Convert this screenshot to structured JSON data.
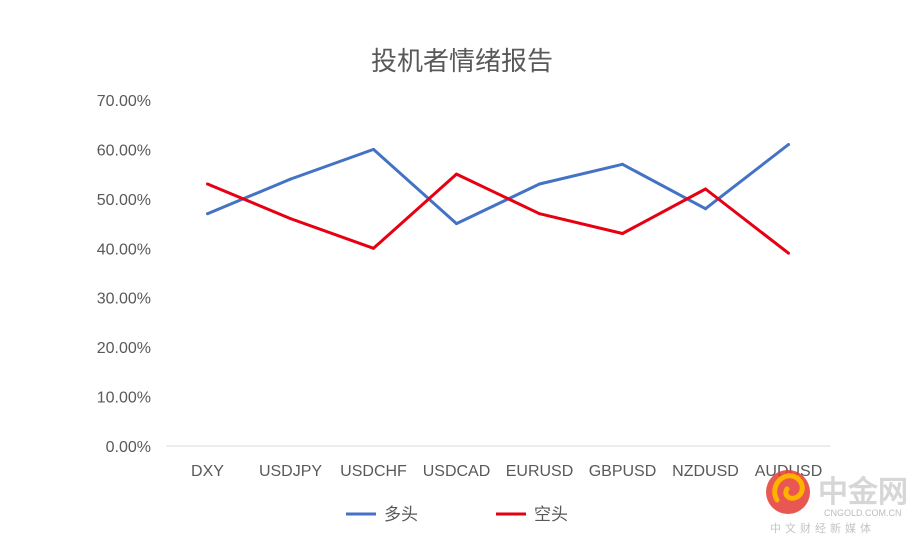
{
  "chart_data": {
    "type": "line",
    "title": "投机者情绪报告",
    "categories": [
      "DXY",
      "USDJPY",
      "USDCHF",
      "USDCAD",
      "EURUSD",
      "GBPUSD",
      "NZDUSD",
      "AUDUSD"
    ],
    "series": [
      {
        "name": "多头",
        "color": "#4472c4",
        "values": [
          0.47,
          0.54,
          0.6,
          0.45,
          0.53,
          0.57,
          0.48,
          0.61
        ]
      },
      {
        "name": "空头",
        "color": "#e60012",
        "values": [
          0.53,
          0.46,
          0.4,
          0.55,
          0.47,
          0.43,
          0.52,
          0.39
        ]
      }
    ],
    "ylim": [
      0,
      0.7
    ],
    "yticks": [
      "0.00%",
      "10.00%",
      "20.00%",
      "30.00%",
      "40.00%",
      "50.00%",
      "60.00%",
      "70.00%"
    ],
    "xlabel": "",
    "ylabel": "",
    "legend_position": "bottom",
    "grid": false
  },
  "watermark": {
    "name": "中金网",
    "domain": "CNGOLD.COM.CN",
    "slogan": "中文财经新媒体",
    "icon": "cngold-logo-icon"
  }
}
